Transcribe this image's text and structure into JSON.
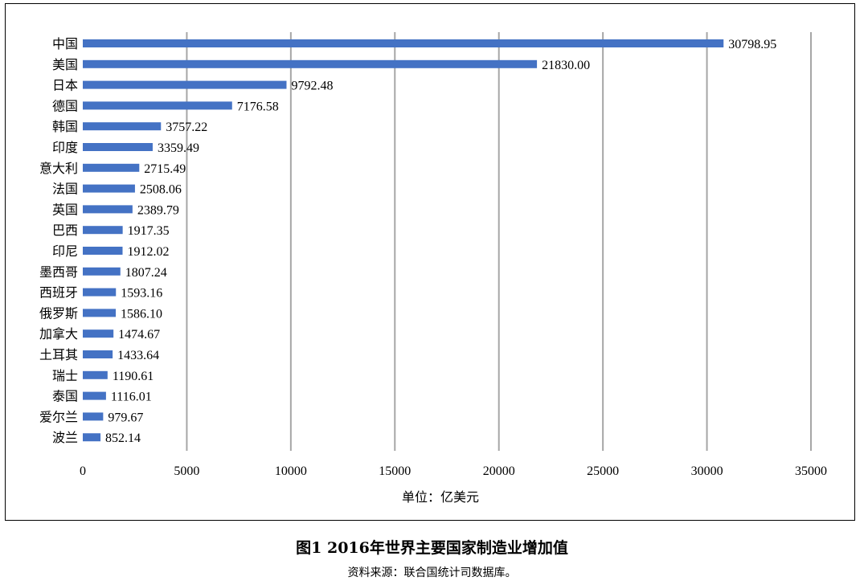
{
  "chart_data": {
    "type": "bar",
    "orientation": "horizontal",
    "categories": [
      "中国",
      "美国",
      "日本",
      "德国",
      "韩国",
      "印度",
      "意大利",
      "法国",
      "英国",
      "巴西",
      "印尼",
      "墨西哥",
      "西班牙",
      "俄罗斯",
      "加拿大",
      "土耳其",
      "瑞士",
      "泰国",
      "爱尔兰",
      "波兰"
    ],
    "values": [
      30798.95,
      21830.0,
      9792.48,
      7176.58,
      3757.22,
      3359.49,
      2715.49,
      2508.06,
      2389.79,
      1917.35,
      1912.02,
      1807.24,
      1593.16,
      1586.1,
      1474.67,
      1433.64,
      1190.61,
      1116.01,
      979.67,
      852.14
    ],
    "value_labels": [
      "30798.95",
      "21830.00",
      "9792.48",
      "7176.58",
      "3757.22",
      "3359.49",
      "2715.49",
      "2508.06",
      "2389.79",
      "1917.35",
      "1912.02",
      "1807.24",
      "1593.16",
      "1586.10",
      "1474.67",
      "1433.64",
      "1190.61",
      "1116.01",
      "979.67",
      "852.14"
    ],
    "xticks": [
      "0",
      "5000",
      "10000",
      "15000",
      "20000",
      "25000",
      "30000",
      "35000"
    ],
    "xlim": [
      0,
      35000
    ],
    "xlabel": "单位：亿美元",
    "ylabel": "",
    "title": "",
    "grid": "vertical",
    "legend": "none",
    "bar_color": "#4472c4",
    "grid_color": "#a6a6a6"
  },
  "caption": "图1 2016年世界主要国家制造业增加值",
  "source": "资料来源：联合国统计司数据库。"
}
